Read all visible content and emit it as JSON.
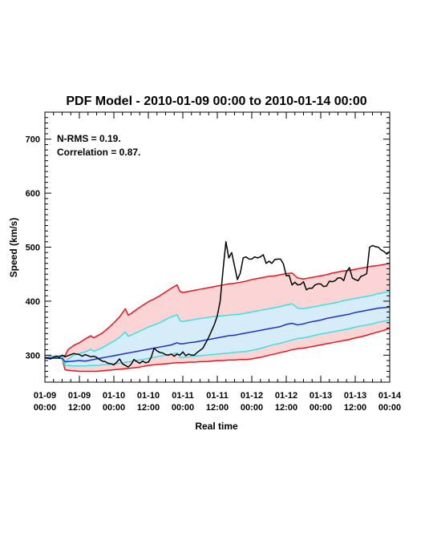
{
  "chart_data": {
    "type": "line",
    "title": "PDF Model - 2010-01-09 00:00 to 2010-01-14 00:00",
    "xlabel": "Real time",
    "ylabel": "Speed (km/s)",
    "xlim": [
      0,
      120
    ],
    "ylim": [
      250,
      750
    ],
    "xunit": "hours from 2010-01-09 00:00",
    "x_ticks": [
      {
        "x": 0,
        "line1": "01-09",
        "line2": "00:00"
      },
      {
        "x": 12,
        "line1": "01-09",
        "line2": "12:00"
      },
      {
        "x": 24,
        "line1": "01-10",
        "line2": "00:00"
      },
      {
        "x": 36,
        "line1": "01-10",
        "line2": "12:00"
      },
      {
        "x": 48,
        "line1": "01-11",
        "line2": "00:00"
      },
      {
        "x": 60,
        "line1": "01-11",
        "line2": "12:00"
      },
      {
        "x": 72,
        "line1": "01-12",
        "line2": "00:00"
      },
      {
        "x": 84,
        "line1": "01-12",
        "line2": "12:00"
      },
      {
        "x": 96,
        "line1": "01-13",
        "line2": "00:00"
      },
      {
        "x": 108,
        "line1": "01-13",
        "line2": "12:00"
      },
      {
        "x": 120,
        "line1": "01-14",
        "line2": "00:00"
      }
    ],
    "y_ticks": [
      300,
      400,
      500,
      600,
      700
    ],
    "grid": false,
    "annotations": [
      "N-RMS = 0.19.",
      "Correlation = 0.87."
    ],
    "colors": {
      "outer_band_fill": "#fbd5d5",
      "inner_band_fill": "#d6ecf8",
      "outer_bounds": "#e8141c",
      "inner_bounds": "#3ce0e0",
      "median": "#1c2fc8",
      "observed": "#000000"
    },
    "series": [
      {
        "name": "observed",
        "x": [
          0,
          2,
          3,
          4,
          5,
          6,
          7,
          8,
          9,
          10,
          11,
          12,
          13,
          14,
          15,
          16,
          17,
          18,
          19,
          20,
          21,
          22,
          23,
          24,
          25,
          26,
          27,
          28,
          29,
          30,
          31,
          32,
          33,
          34,
          35,
          36,
          37,
          38,
          39,
          40,
          41,
          42,
          43,
          44,
          45,
          46,
          47,
          48,
          49,
          50,
          51,
          52,
          53,
          54,
          55,
          56,
          57,
          58,
          59,
          60,
          61,
          62,
          63,
          64,
          65,
          66,
          67,
          68,
          69,
          70,
          71,
          72,
          73,
          74,
          75,
          76,
          77,
          78,
          79,
          80,
          81,
          82,
          83,
          84,
          85,
          86,
          87,
          88,
          89,
          90,
          91,
          92,
          93,
          94,
          95,
          96,
          97,
          98,
          99,
          100,
          101,
          102,
          103,
          104,
          105,
          106,
          107,
          108,
          109,
          110,
          111,
          112,
          113,
          114,
          115,
          116,
          117,
          118,
          119,
          120
        ],
        "y": [
          295,
          293,
          296,
          298,
          296,
          300,
          297,
          299,
          301,
          303,
          302,
          301,
          298,
          301,
          299,
          297,
          298,
          296,
          292,
          289,
          288,
          285,
          284,
          282,
          287,
          293,
          284,
          281,
          278,
          283,
          292,
          288,
          285,
          289,
          286,
          287,
          296,
          313,
          308,
          305,
          304,
          301,
          300,
          302,
          298,
          302,
          300,
          306,
          299,
          302,
          300,
          300,
          305,
          309,
          313,
          323,
          333,
          345,
          357,
          373,
          400,
          458,
          510,
          480,
          490,
          465,
          440,
          452,
          480,
          482,
          478,
          478,
          482,
          480,
          482,
          486,
          470,
          474,
          470,
          477,
          478,
          478,
          469,
          447,
          448,
          430,
          435,
          430,
          431,
          436,
          421,
          424,
          424,
          430,
          432,
          432,
          427,
          428,
          437,
          436,
          438,
          443,
          443,
          438,
          455,
          462,
          443,
          440,
          438,
          446,
          448,
          451,
          500,
          503,
          501,
          500,
          495,
          492,
          487,
          492
        ]
      },
      {
        "name": "outer-upper",
        "x": [
          0,
          6,
          7,
          8,
          10,
          12,
          14,
          16,
          17,
          18,
          20,
          22,
          24,
          26,
          28,
          29,
          30,
          32,
          34,
          36,
          38,
          40,
          42,
          44,
          46,
          47,
          48,
          50,
          52,
          54,
          56,
          58,
          60,
          62,
          64,
          66,
          68,
          70,
          72,
          74,
          76,
          78,
          80,
          82,
          84,
          86,
          88,
          90,
          92,
          94,
          96,
          98,
          100,
          102,
          104,
          106,
          108,
          110,
          112,
          114,
          116,
          118,
          120
        ],
        "y": [
          297,
          299,
          299,
          310,
          318,
          323,
          330,
          336,
          332,
          335,
          341,
          350,
          360,
          371,
          386,
          374,
          377,
          385,
          392,
          399,
          404,
          410,
          417,
          424,
          430,
          418,
          416,
          418,
          420,
          422,
          424,
          426,
          428,
          430,
          432,
          433,
          435,
          437,
          440,
          442,
          444,
          446,
          447,
          449,
          451,
          452,
          443,
          441,
          443,
          445,
          447,
          449,
          452,
          454,
          456,
          457,
          459,
          461,
          463,
          465,
          466,
          468,
          470
        ]
      },
      {
        "name": "inner-upper",
        "x": [
          0,
          6,
          7,
          8,
          10,
          12,
          14,
          16,
          17,
          18,
          20,
          22,
          24,
          26,
          28,
          29,
          30,
          32,
          34,
          36,
          38,
          40,
          42,
          44,
          46,
          47,
          48,
          50,
          52,
          54,
          56,
          58,
          60,
          62,
          64,
          66,
          68,
          70,
          72,
          74,
          76,
          78,
          80,
          82,
          84,
          86,
          88,
          90,
          92,
          94,
          96,
          98,
          100,
          102,
          104,
          106,
          108,
          110,
          112,
          114,
          116,
          118,
          120
        ],
        "y": [
          297,
          298,
          284,
          292,
          300,
          303,
          306,
          311,
          307,
          309,
          314,
          320,
          326,
          333,
          343,
          335,
          337,
          342,
          347,
          352,
          356,
          360,
          366,
          371,
          375,
          364,
          362,
          364,
          366,
          368,
          369,
          371,
          372,
          373,
          374,
          375,
          376,
          378,
          380,
          382,
          384,
          386,
          388,
          390,
          393,
          395,
          387,
          386,
          388,
          390,
          392,
          394,
          396,
          398,
          401,
          403,
          405,
          407,
          409,
          411,
          414,
          416,
          418
        ]
      },
      {
        "name": "median",
        "x": [
          0,
          6,
          7,
          8,
          10,
          12,
          14,
          16,
          18,
          20,
          22,
          24,
          26,
          28,
          30,
          32,
          34,
          36,
          38,
          40,
          42,
          44,
          46,
          47,
          48,
          50,
          52,
          54,
          56,
          58,
          60,
          62,
          64,
          66,
          68,
          70,
          72,
          74,
          76,
          78,
          80,
          82,
          84,
          86,
          88,
          90,
          92,
          94,
          96,
          98,
          100,
          102,
          104,
          106,
          108,
          110,
          112,
          114,
          116,
          118,
          120
        ],
        "y": [
          295,
          294,
          288,
          288,
          289,
          290,
          289,
          291,
          293,
          295,
          297,
          299,
          301,
          303,
          305,
          307,
          309,
          311,
          313,
          315,
          317,
          319,
          323,
          321,
          321,
          323,
          324,
          326,
          328,
          330,
          332,
          334,
          336,
          337,
          339,
          341,
          343,
          345,
          347,
          349,
          351,
          353,
          357,
          359,
          356,
          358,
          361,
          363,
          365,
          368,
          370,
          372,
          374,
          376,
          379,
          381,
          383,
          385,
          387,
          388,
          389
        ]
      },
      {
        "name": "inner-lower",
        "x": [
          0,
          6,
          7,
          8,
          10,
          12,
          14,
          16,
          18,
          20,
          22,
          24,
          26,
          28,
          30,
          32,
          34,
          36,
          38,
          40,
          42,
          44,
          46,
          47,
          48,
          50,
          52,
          54,
          56,
          58,
          60,
          62,
          64,
          66,
          68,
          70,
          72,
          74,
          76,
          78,
          80,
          82,
          84,
          86,
          88,
          90,
          92,
          94,
          96,
          98,
          100,
          102,
          104,
          106,
          108,
          110,
          112,
          114,
          116,
          118,
          120
        ],
        "y": [
          295,
          294,
          281,
          281,
          280,
          280,
          280,
          281,
          281,
          282,
          283,
          284,
          285,
          287,
          288,
          290,
          292,
          294,
          296,
          298,
          300,
          302,
          304,
          296,
          296,
          297,
          298,
          299,
          300,
          301,
          302,
          303,
          304,
          305,
          306,
          307,
          309,
          311,
          314,
          317,
          320,
          322,
          325,
          328,
          331,
          332,
          334,
          337,
          339,
          341,
          343,
          345,
          347,
          349,
          352,
          354,
          356,
          358,
          361,
          363,
          365
        ]
      },
      {
        "name": "outer-lower",
        "x": [
          0,
          6,
          7,
          8,
          10,
          12,
          14,
          16,
          18,
          20,
          22,
          24,
          26,
          28,
          30,
          32,
          34,
          36,
          38,
          40,
          42,
          44,
          46,
          47,
          48,
          50,
          52,
          54,
          56,
          58,
          60,
          62,
          64,
          66,
          68,
          70,
          72,
          74,
          76,
          78,
          80,
          82,
          84,
          86,
          88,
          90,
          92,
          94,
          96,
          98,
          100,
          102,
          104,
          106,
          108,
          110,
          112,
          114,
          116,
          118,
          120
        ],
        "y": [
          295,
          294,
          273,
          272,
          271,
          270,
          270,
          270,
          270,
          271,
          272,
          273,
          274,
          275,
          276,
          277,
          279,
          281,
          282,
          283,
          284,
          285,
          286,
          286,
          286,
          287,
          287,
          288,
          288,
          289,
          290,
          290,
          291,
          291,
          292,
          292,
          293,
          295,
          297,
          300,
          302,
          305,
          307,
          310,
          312,
          313,
          315,
          317,
          319,
          321,
          323,
          325,
          327,
          329,
          332,
          334,
          337,
          340,
          343,
          346,
          350
        ]
      }
    ]
  }
}
